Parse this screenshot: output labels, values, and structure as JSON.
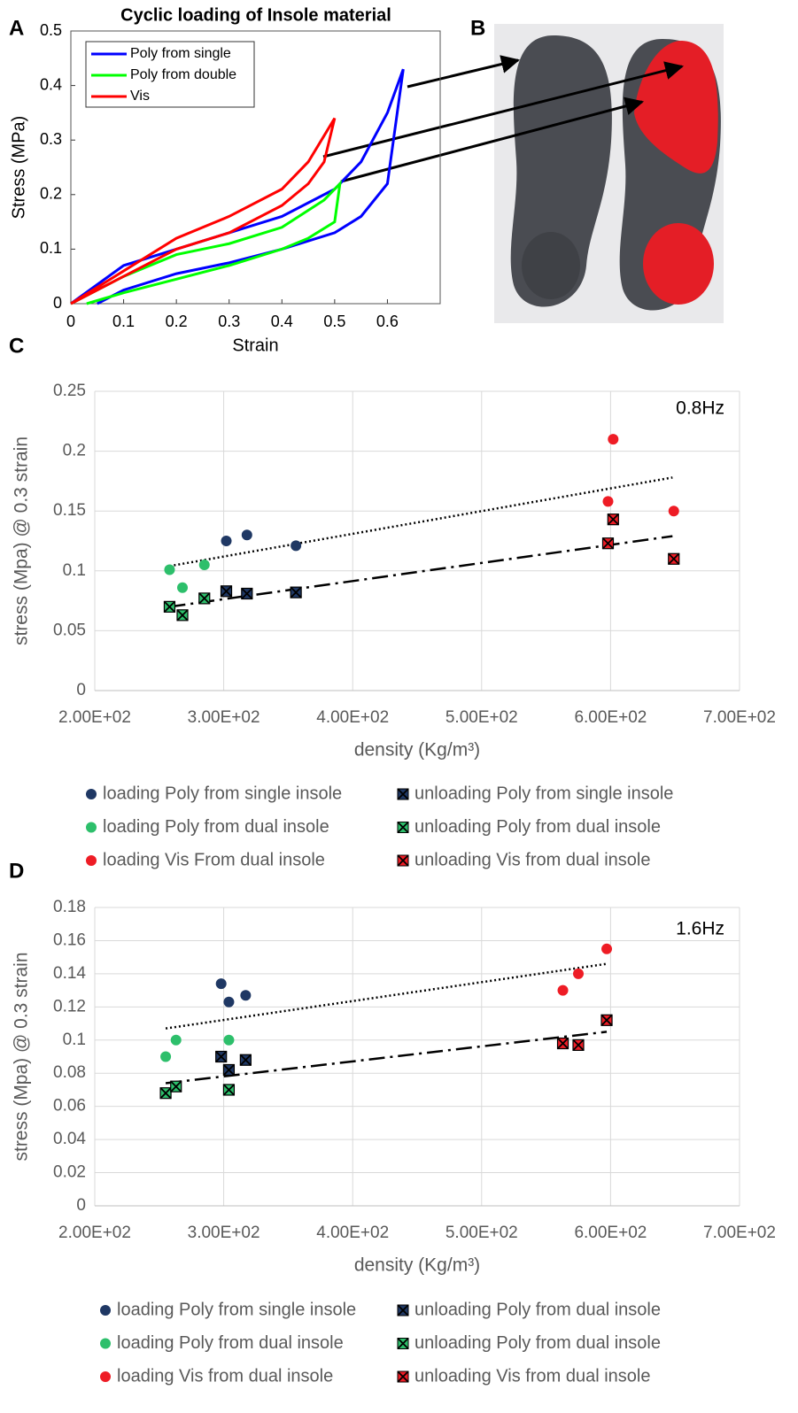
{
  "photo": {
    "label": "B"
  },
  "chart_data": [
    {
      "panel": "A",
      "type": "line",
      "title": "Cyclic loading of Insole material",
      "x_label": "Strain",
      "y_label": "Stress (MPa)",
      "xlim": [
        0,
        0.7
      ],
      "xticks": [
        0,
        0.1,
        0.2,
        0.3,
        0.4,
        0.5,
        0.6
      ],
      "ylim": [
        0,
        0.5
      ],
      "yticks": [
        0,
        0.1,
        0.2,
        0.3,
        0.4,
        0.5
      ],
      "grid": false,
      "legend": "upper left",
      "series": [
        {
          "name": "Poly from single",
          "color": "#0000ff",
          "x": [
            0,
            0.1,
            0.2,
            0.3,
            0.4,
            0.5,
            0.55,
            0.6,
            0.63,
            0.6,
            0.55,
            0.5,
            0.4,
            0.3,
            0.2,
            0.1,
            0.05
          ],
          "values": [
            0,
            0.07,
            0.1,
            0.13,
            0.16,
            0.21,
            0.26,
            0.35,
            0.43,
            0.22,
            0.16,
            0.13,
            0.1,
            0.075,
            0.055,
            0.025,
            0
          ]
        },
        {
          "name": "Poly from double",
          "color": "#00ff00",
          "x": [
            0,
            0.1,
            0.2,
            0.3,
            0.4,
            0.48,
            0.51,
            0.5,
            0.45,
            0.4,
            0.3,
            0.2,
            0.1,
            0.03
          ],
          "values": [
            0,
            0.05,
            0.09,
            0.11,
            0.14,
            0.19,
            0.22,
            0.15,
            0.12,
            0.1,
            0.07,
            0.045,
            0.02,
            0
          ]
        },
        {
          "name": "Vis",
          "color": "#ff0000",
          "x": [
            0,
            0.1,
            0.2,
            0.3,
            0.4,
            0.45,
            0.5,
            0.48,
            0.45,
            0.4,
            0.3,
            0.2,
            0.1,
            0
          ],
          "values": [
            0,
            0.06,
            0.12,
            0.16,
            0.21,
            0.26,
            0.34,
            0.26,
            0.22,
            0.18,
            0.13,
            0.1,
            0.05,
            0
          ]
        }
      ]
    },
    {
      "panel": "C",
      "type": "scatter",
      "annotation": "0.8Hz",
      "x_label": "density (Kg/m³)",
      "y_label": "stress (Mpa) @ 0.3 strain",
      "xlim": [
        200,
        700
      ],
      "xticks": [
        {
          "value": 200,
          "label": "2.00E+02"
        },
        {
          "value": 300,
          "label": "3.00E+02"
        },
        {
          "value": 400,
          "label": "4.00E+02"
        },
        {
          "value": 500,
          "label": "5.00E+02"
        },
        {
          "value": 600,
          "label": "6.00E+02"
        },
        {
          "value": 700,
          "label": "7.00E+02"
        }
      ],
      "ylim": [
        0,
        0.25
      ],
      "yticks": [
        0,
        0.05,
        0.1,
        0.15,
        0.2,
        0.25
      ],
      "grid": true,
      "legend": "bottom",
      "series": [
        {
          "name": "loading Poly from single insole",
          "color": "#1f3864",
          "marker": "circle",
          "x": [
            302,
            318,
            356
          ],
          "values": [
            0.125,
            0.13,
            0.121
          ]
        },
        {
          "name": "loading Poly from dual insole",
          "color": "#2dbf6b",
          "marker": "circle",
          "x": [
            258,
            268,
            285
          ],
          "values": [
            0.101,
            0.086,
            0.105
          ]
        },
        {
          "name": "loading Vis From dual insole",
          "color": "#ee1c25",
          "marker": "circle",
          "x": [
            598,
            602,
            649
          ],
          "values": [
            0.158,
            0.21,
            0.15
          ]
        },
        {
          "name": "unloading Poly from single insole",
          "color": "#1f3864",
          "marker": "square-x",
          "x": [
            302,
            318,
            356
          ],
          "values": [
            0.083,
            0.081,
            0.082
          ]
        },
        {
          "name": "unloading Poly from dual insole",
          "color": "#2dbf6b",
          "marker": "square-x",
          "x": [
            258,
            268,
            285
          ],
          "values": [
            0.07,
            0.063,
            0.077
          ]
        },
        {
          "name": "unloading Vis from dual insole",
          "color": "#ee1c25",
          "marker": "square-x",
          "x": [
            598,
            602,
            649
          ],
          "values": [
            0.123,
            0.143,
            0.11
          ]
        }
      ],
      "trendlines": [
        {
          "style": "dotted",
          "color": "#000000",
          "x": [
            258,
            648
          ],
          "values": [
            0.104,
            0.178
          ]
        },
        {
          "style": "dash-dot",
          "color": "#000000",
          "x": [
            258,
            648
          ],
          "values": [
            0.07,
            0.129
          ]
        }
      ]
    },
    {
      "panel": "D",
      "type": "scatter",
      "annotation": "1.6Hz",
      "x_label": "density (Kg/m³)",
      "y_label": "stress (Mpa) @ 0.3 strain",
      "xlim": [
        200,
        700
      ],
      "xticks": [
        {
          "value": 200,
          "label": "2.00E+02"
        },
        {
          "value": 300,
          "label": "3.00E+02"
        },
        {
          "value": 400,
          "label": "4.00E+02"
        },
        {
          "value": 500,
          "label": "5.00E+02"
        },
        {
          "value": 600,
          "label": "6.00E+02"
        },
        {
          "value": 700,
          "label": "7.00E+02"
        }
      ],
      "ylim": [
        0,
        0.18
      ],
      "yticks": [
        0,
        0.02,
        0.04,
        0.06,
        0.08,
        0.1,
        0.12,
        0.14,
        0.16,
        0.18
      ],
      "grid": true,
      "legend": "bottom",
      "series": [
        {
          "name": "loading Poly from single insole",
          "color": "#1f3864",
          "marker": "circle",
          "x": [
            298,
            304,
            317
          ],
          "values": [
            0.134,
            0.123,
            0.127
          ]
        },
        {
          "name": "loading Poly from dual insole",
          "color": "#2dbf6b",
          "marker": "circle",
          "x": [
            255,
            263,
            304
          ],
          "values": [
            0.09,
            0.1,
            0.1
          ]
        },
        {
          "name": "loading Vis from dual insole",
          "color": "#ee1c25",
          "marker": "circle",
          "x": [
            563,
            575,
            597
          ],
          "values": [
            0.13,
            0.14,
            0.155
          ]
        },
        {
          "name": "unloading Poly from dual insole",
          "color": "#1f3864",
          "marker": "square-x",
          "x": [
            298,
            304,
            317
          ],
          "values": [
            0.09,
            0.082,
            0.088
          ]
        },
        {
          "name": "unloading Poly from dual insole",
          "color": "#2dbf6b",
          "marker": "square-x",
          "x": [
            255,
            263,
            304
          ],
          "values": [
            0.068,
            0.072,
            0.07
          ]
        },
        {
          "name": "unloading Vis from dual insole",
          "color": "#ee1c25",
          "marker": "square-x",
          "x": [
            563,
            575,
            597
          ],
          "values": [
            0.098,
            0.097,
            0.112
          ]
        }
      ],
      "trendlines": [
        {
          "style": "dotted",
          "color": "#000000",
          "x": [
            255,
            597
          ],
          "values": [
            0.107,
            0.146
          ]
        },
        {
          "style": "dash-dot",
          "color": "#000000",
          "x": [
            255,
            597
          ],
          "values": [
            0.074,
            0.105
          ]
        }
      ]
    }
  ]
}
